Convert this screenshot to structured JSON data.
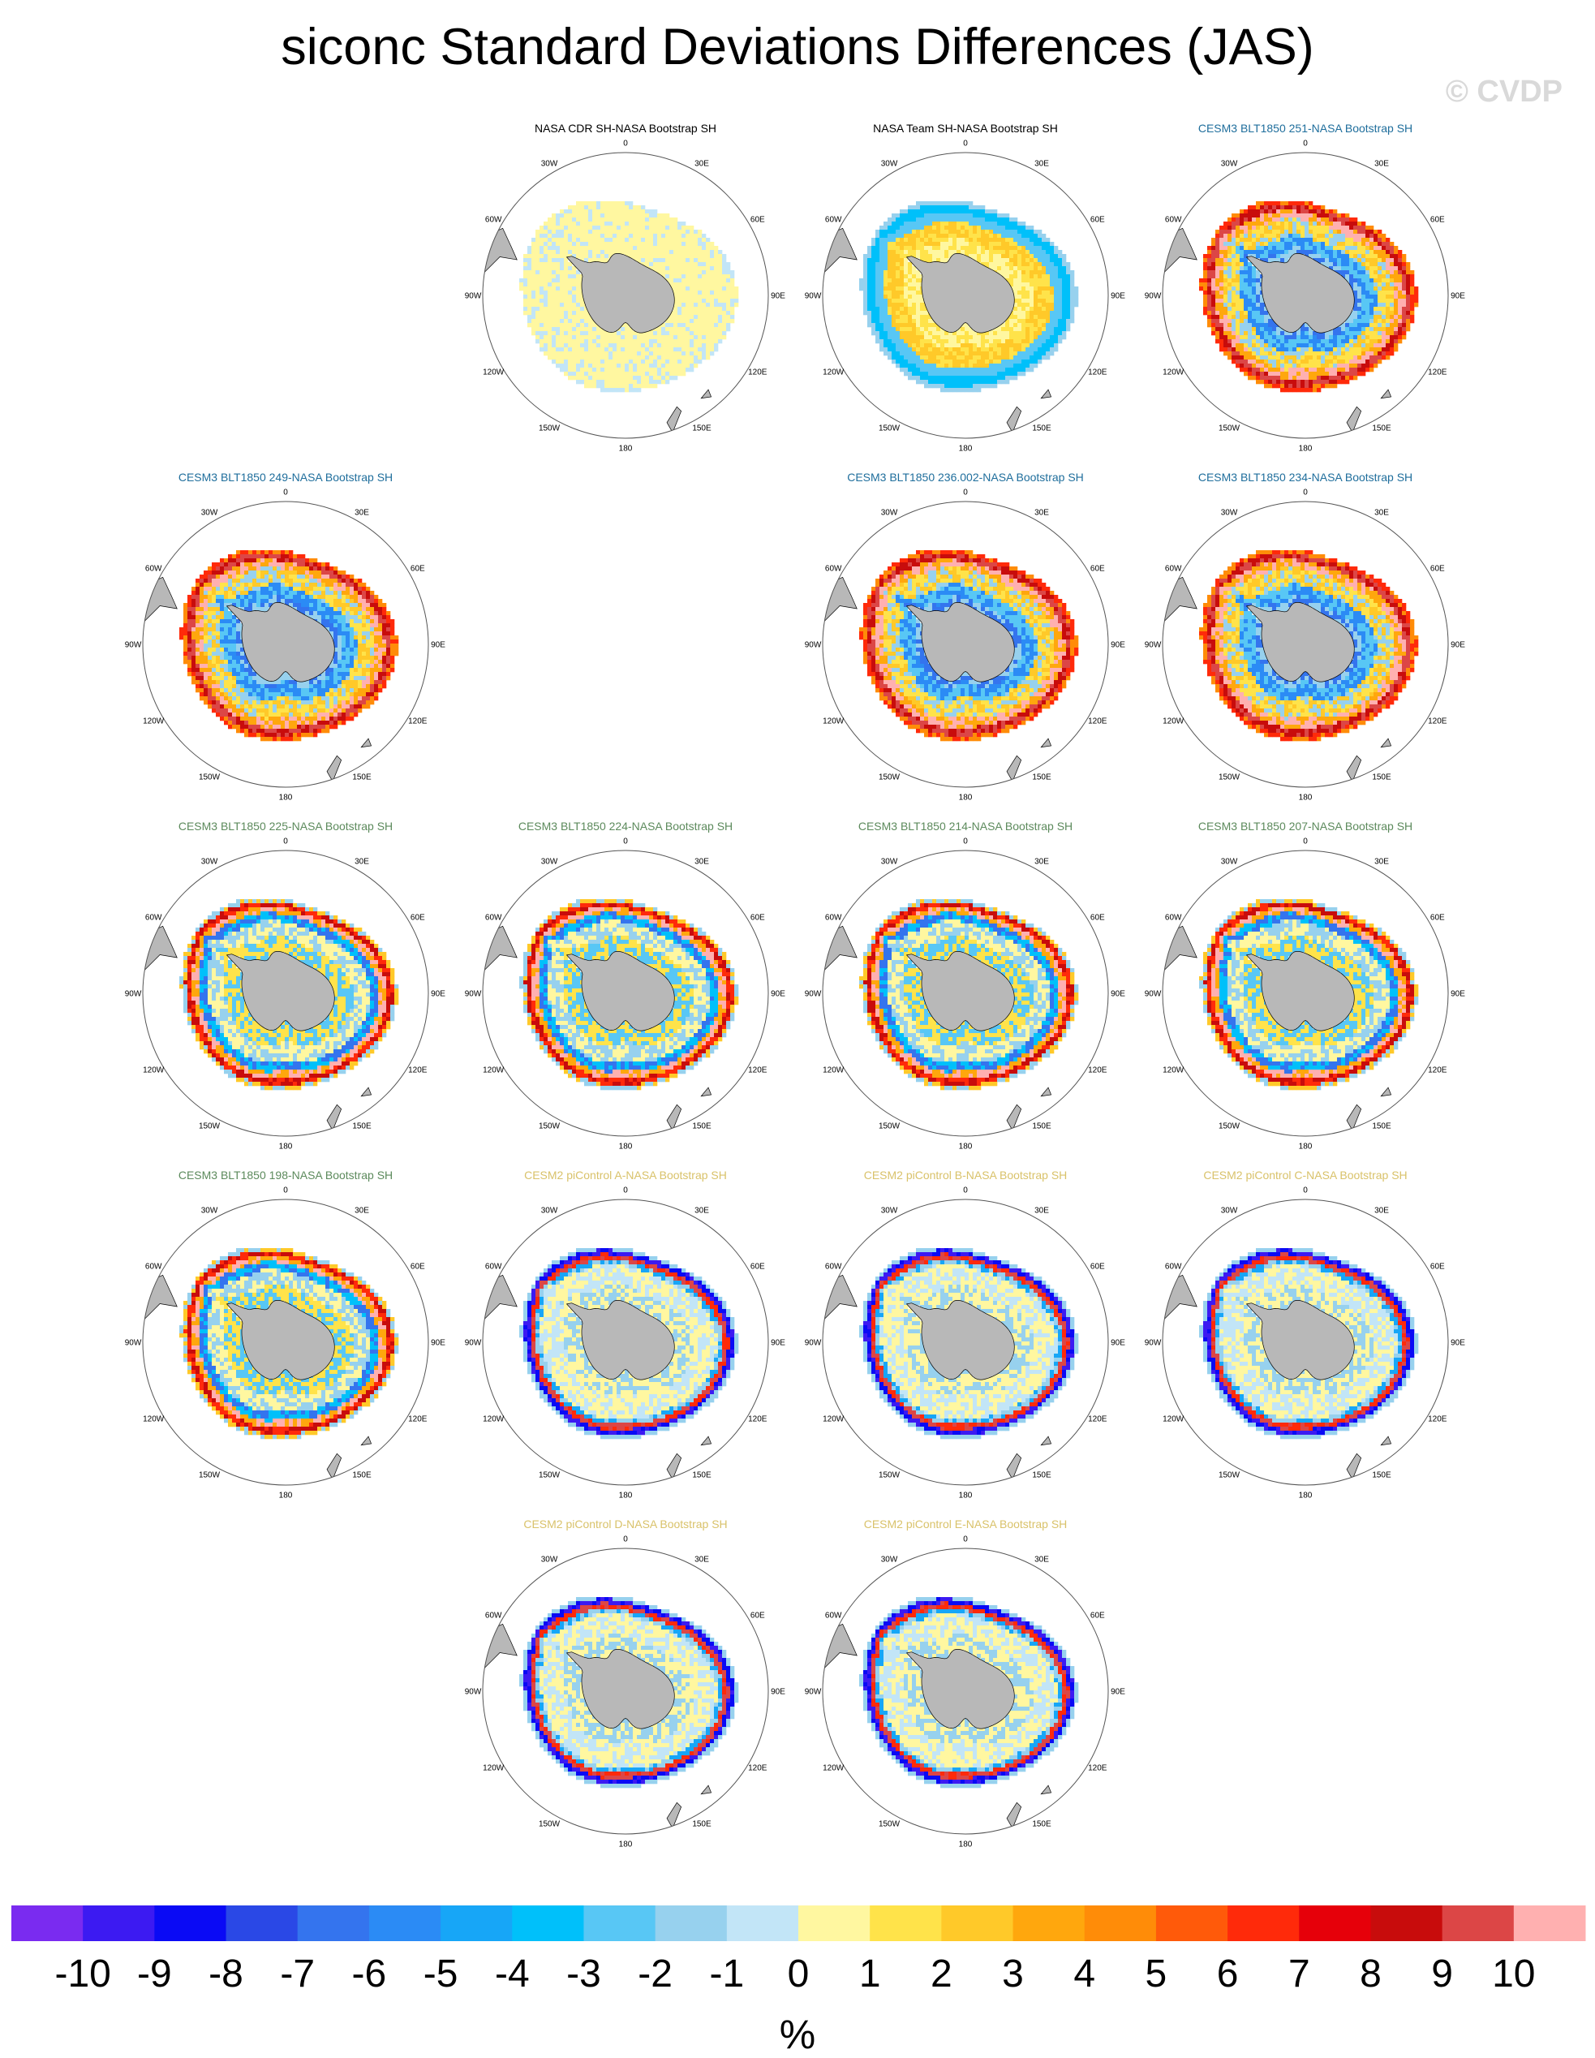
{
  "title": "siconc Standard Deviations Differences (JAS)",
  "watermark": "© CVDP",
  "chart_data": {
    "type": "heatmap",
    "projection": "south polar stereographic",
    "variable": "siconc",
    "season": "JAS",
    "longitude_labels": [
      "0",
      "30E",
      "60E",
      "90E",
      "120E",
      "150E",
      "180",
      "150W",
      "120W",
      "90W",
      "60W",
      "30W"
    ],
    "panels": [
      {
        "title": "NASA CDR SH-NASA Bootstrap SH",
        "color": "#000000",
        "pattern": "obs1"
      },
      {
        "title": "NASA Team SH-NASA Bootstrap SH",
        "color": "#000000",
        "pattern": "obs2"
      },
      {
        "title": "CESM3 BLT1850 251-NASA Bootstrap SH",
        "color": "#1f6e9c",
        "pattern": "model-pos"
      },
      {
        "title": "CESM3 BLT1850 249-NASA Bootstrap SH",
        "color": "#1f6e9c",
        "pattern": "model-pos"
      },
      {
        "title": "CESM3 BLT1850 236.002-NASA Bootstrap SH",
        "color": "#1f6e9c",
        "pattern": "model-pos"
      },
      {
        "title": "CESM3 BLT1850 234-NASA Bootstrap SH",
        "color": "#1f6e9c",
        "pattern": "model-pos"
      },
      {
        "title": "CESM3 BLT1850 225-NASA Bootstrap SH",
        "color": "#5c8a5c",
        "pattern": "model-mixed"
      },
      {
        "title": "CESM3 BLT1850 224-NASA Bootstrap SH",
        "color": "#5c8a5c",
        "pattern": "model-mixed"
      },
      {
        "title": "CESM3 BLT1850 214-NASA Bootstrap SH",
        "color": "#5c8a5c",
        "pattern": "model-mixed"
      },
      {
        "title": "CESM3 BLT1850 207-NASA Bootstrap SH",
        "color": "#5c8a5c",
        "pattern": "model-mixed"
      },
      {
        "title": "CESM3 BLT1850 198-NASA Bootstrap SH",
        "color": "#5c8a5c",
        "pattern": "model-mixed"
      },
      {
        "title": "CESM2 piControl A-NASA Bootstrap SH",
        "color": "#d9c26a",
        "pattern": "model-neg"
      },
      {
        "title": "CESM2 piControl B-NASA Bootstrap SH",
        "color": "#d9c26a",
        "pattern": "model-neg"
      },
      {
        "title": "CESM2 piControl C-NASA Bootstrap SH",
        "color": "#d9c26a",
        "pattern": "model-neg"
      },
      {
        "title": "CESM2 piControl D-NASA Bootstrap SH",
        "color": "#d9c26a",
        "pattern": "model-neg"
      },
      {
        "title": "CESM2 piControl E-NASA Bootstrap SH",
        "color": "#d9c26a",
        "pattern": "model-neg"
      }
    ],
    "colorbar": {
      "labels": [
        "-10",
        "-9",
        "-8",
        "-7",
        "-6",
        "-5",
        "-4",
        "-3",
        "-2",
        "-1",
        "0",
        "1",
        "2",
        "3",
        "4",
        "5",
        "6",
        "7",
        "8",
        "9",
        "10"
      ],
      "colors": [
        "#7a2bf0",
        "#3c1af2",
        "#0a0af5",
        "#2a48e6",
        "#3474ee",
        "#2b8bf5",
        "#17a6f7",
        "#00c0fa",
        "#58c7f5",
        "#97d1ee",
        "#c2e5f7",
        "#fff7a0",
        "#ffe34a",
        "#ffc929",
        "#ffa70d",
        "#ff8c08",
        "#ff5a0a",
        "#ff2a0a",
        "#e6000a",
        "#c80c0c",
        "#dc4646",
        "#ffb0b0"
      ],
      "unit": "%"
    }
  }
}
